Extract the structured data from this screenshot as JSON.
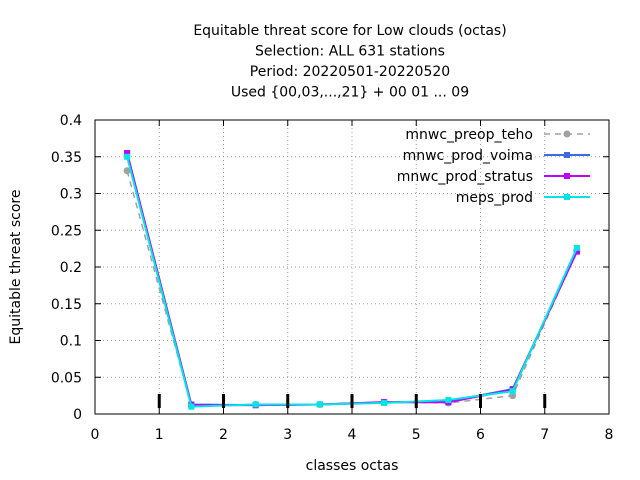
{
  "chart_data": {
    "type": "line",
    "title": [
      "Equitable threat score  for Low clouds (octas)",
      "Selection: ALL    631 stations",
      "Period: 20220501-20220520",
      "Used {00,03,...,21} + 00 01 ... 09"
    ],
    "xlabel": "classes octas",
    "ylabel": "Equitable threat score",
    "xlim": [
      0,
      8
    ],
    "ylim": [
      0,
      0.4
    ],
    "xticks": [
      "0",
      "1",
      "2",
      "3",
      "4",
      "5",
      "6",
      "7",
      "8"
    ],
    "yticks": [
      "0",
      "0.05",
      "0.1",
      "0.15",
      "0.2",
      "0.25",
      "0.3",
      "0.35",
      "0.4"
    ],
    "grid": true,
    "legend_position": "top-right",
    "x": [
      0.5,
      1.5,
      2.5,
      3.5,
      4.5,
      5.5,
      6.5,
      7.5
    ],
    "series": [
      {
        "name": "mnwc_preop_teho",
        "color": "#a0a0a0",
        "dash": "dashed",
        "marker": "circle",
        "values": [
          0.331,
          0.011,
          0.013,
          0.013,
          0.016,
          0.015,
          0.025,
          0.222
        ]
      },
      {
        "name": "mnwc_prod_voima",
        "color": "#4169e1",
        "dash": "solid",
        "marker": "square",
        "values": [
          0.355,
          0.013,
          0.012,
          0.013,
          0.016,
          0.017,
          0.034,
          0.221
        ]
      },
      {
        "name": "mnwc_prod_stratus",
        "color": "#c000ff",
        "dash": "solid",
        "marker": "square",
        "values": [
          0.355,
          0.012,
          0.012,
          0.013,
          0.016,
          0.016,
          0.033,
          0.221
        ]
      },
      {
        "name": "meps_prod",
        "color": "#00e5e5",
        "dash": "solid",
        "marker": "square",
        "values": [
          0.35,
          0.01,
          0.013,
          0.013,
          0.015,
          0.019,
          0.031,
          0.226
        ]
      }
    ]
  }
}
